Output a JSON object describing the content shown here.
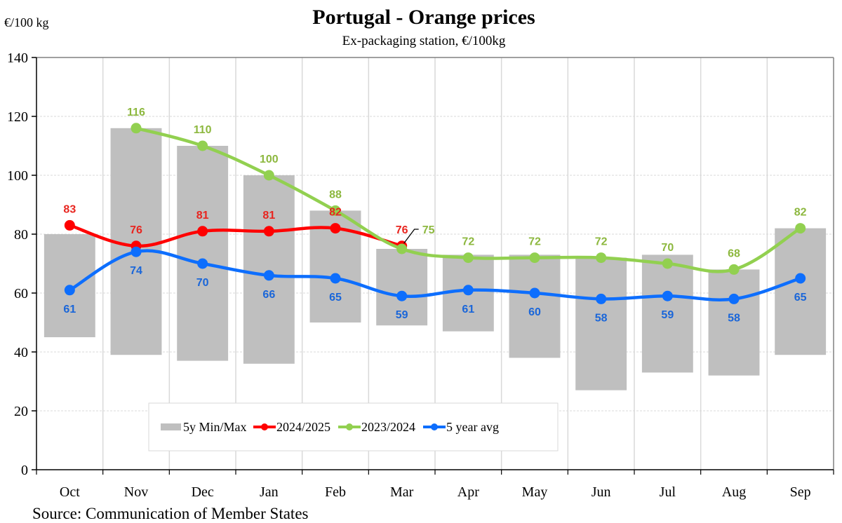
{
  "chart_data": {
    "type": "line",
    "title": "Portugal  -  Orange prices",
    "subtitle": "Ex-packaging  station, €/100kg",
    "ylabel": "€/100 kg",
    "xlabel": "",
    "source": "Source:  Communication  of  Member States",
    "ylim": [
      0,
      140
    ],
    "yticks": [
      0,
      20,
      40,
      60,
      80,
      100,
      120,
      140
    ],
    "grid": true,
    "legend_position": "bottom-center",
    "categories": [
      "Oct",
      "Nov",
      "Dec",
      "Jan",
      "Feb",
      "Mar",
      "Apr",
      "May",
      "Jun",
      "Jul",
      "Aug",
      "Sep"
    ],
    "range_band": {
      "name": "5y Min/Max",
      "color": "#bfbfbf",
      "min": [
        45,
        39,
        37,
        36,
        50,
        49,
        47,
        38,
        27,
        33,
        32,
        39
      ],
      "max": [
        80,
        116,
        110,
        100,
        88,
        75,
        73,
        73,
        72,
        73,
        68,
        82
      ]
    },
    "series": [
      {
        "name": "2024/2025",
        "color": "#ff0000",
        "label_color": "#e8251f",
        "values": [
          83,
          76,
          81,
          81,
          82,
          76,
          null,
          null,
          null,
          null,
          null,
          null
        ],
        "label_position": "above"
      },
      {
        "name": "2023/2024",
        "color": "#92d050",
        "label_color": "#8db83f",
        "values": [
          null,
          116,
          110,
          100,
          88,
          75,
          72,
          72,
          72,
          70,
          68,
          82
        ],
        "label_position": "above"
      },
      {
        "name": "5 year avg",
        "color": "#0d6efd",
        "label_color": "#1a66d9",
        "values": [
          61,
          74,
          70,
          66,
          65,
          59,
          61,
          60,
          58,
          59,
          58,
          65
        ],
        "label_position": "below"
      }
    ]
  }
}
